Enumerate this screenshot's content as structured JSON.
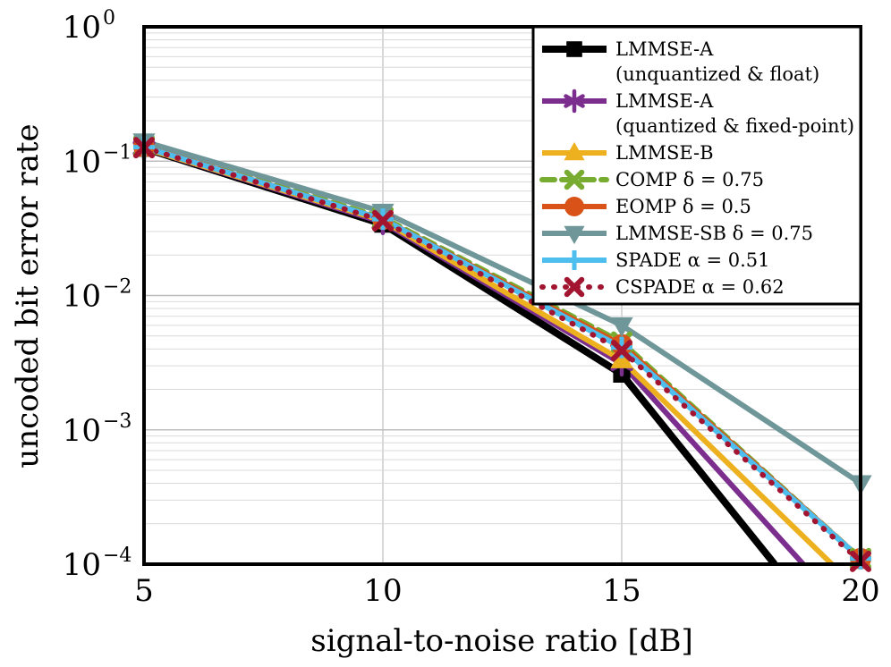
{
  "chart_data": {
    "type": "line",
    "title": "",
    "xlabel": "signal-to-noise ratio [dB]",
    "ylabel": "uncoded bit error rate",
    "xlim": [
      5,
      20
    ],
    "ylim": [
      0.0001,
      1
    ],
    "yscale": "log",
    "grid": true,
    "legend_position": "top-right",
    "x_ticks": [
      {
        "value": 5,
        "label": "5"
      },
      {
        "value": 10,
        "label": "10"
      },
      {
        "value": 15,
        "label": "15"
      },
      {
        "value": 20,
        "label": "20"
      }
    ],
    "y_ticks": [
      {
        "value": 1,
        "base": "10",
        "exp": "0"
      },
      {
        "value": 0.1,
        "base": "10",
        "exp": "−1"
      },
      {
        "value": 0.01,
        "base": "10",
        "exp": "−2"
      },
      {
        "value": 0.001,
        "base": "10",
        "exp": "−3"
      },
      {
        "value": 0.0001,
        "base": "10",
        "exp": "−4"
      }
    ],
    "series": [
      {
        "name": "LMMSE-A",
        "name2": "(unquantized & float)",
        "color": "#000000",
        "dash": "",
        "width": 8,
        "marker": "square",
        "x": [
          5,
          10,
          15,
          18.2
        ],
        "y": [
          0.125,
          0.034,
          0.0026,
          0.0001
        ],
        "marked": [
          0,
          1,
          2
        ]
      },
      {
        "name": "LMMSE-A",
        "name2": "(quantized & fixed-point)",
        "color": "#7b2e8e",
        "dash": "",
        "width": 6,
        "marker": "asterisk",
        "x": [
          5,
          10,
          15,
          18.8
        ],
        "y": [
          0.125,
          0.035,
          0.0031,
          0.0001
        ],
        "marked": [
          0,
          1,
          2
        ]
      },
      {
        "name": "LMMSE-B",
        "color": "#edb120",
        "dash": "",
        "width": 6,
        "marker": "triangle-up",
        "x": [
          5,
          10,
          15,
          19.4
        ],
        "y": [
          0.125,
          0.036,
          0.0033,
          0.0001
        ],
        "marked": [
          0,
          1,
          2
        ]
      },
      {
        "name": "COMP δ = 0.75",
        "color": "#77ac30",
        "dash": "14,8",
        "width": 6,
        "marker": "x",
        "x": [
          5,
          10,
          15,
          20
        ],
        "y": [
          0.13,
          0.038,
          0.0045,
          0.00011
        ],
        "marked": [
          0,
          1,
          2,
          3
        ]
      },
      {
        "name": "EOMP δ = 0.5",
        "color": "#d95319",
        "dash": "",
        "width": 6,
        "marker": "circle",
        "x": [
          5,
          10,
          15,
          20
        ],
        "y": [
          0.128,
          0.037,
          0.0043,
          0.00011
        ],
        "marked": [
          0,
          1,
          2,
          3
        ]
      },
      {
        "name": "LMMSE-SB δ = 0.75",
        "color": "#6f9799",
        "dash": "",
        "width": 6,
        "marker": "triangle-down",
        "x": [
          5,
          10,
          15,
          20
        ],
        "y": [
          0.14,
          0.042,
          0.006,
          0.0004
        ],
        "marked": [
          0,
          1,
          2,
          3
        ]
      },
      {
        "name": "SPADE α = 0.51",
        "color": "#4dbeee",
        "dash": "",
        "width": 6,
        "marker": "plus",
        "x": [
          5,
          10,
          15,
          20
        ],
        "y": [
          0.127,
          0.037,
          0.0041,
          0.00011
        ],
        "marked": [
          0,
          1,
          2,
          3
        ]
      },
      {
        "name": "CSPADE α = 0.62",
        "color": "#a2142f",
        "dash": "1,12",
        "width": 6,
        "marker": "x",
        "x": [
          5,
          10,
          15,
          20
        ],
        "y": [
          0.126,
          0.036,
          0.0039,
          0.000105
        ],
        "marked": [
          0,
          1,
          2,
          3
        ]
      }
    ]
  }
}
